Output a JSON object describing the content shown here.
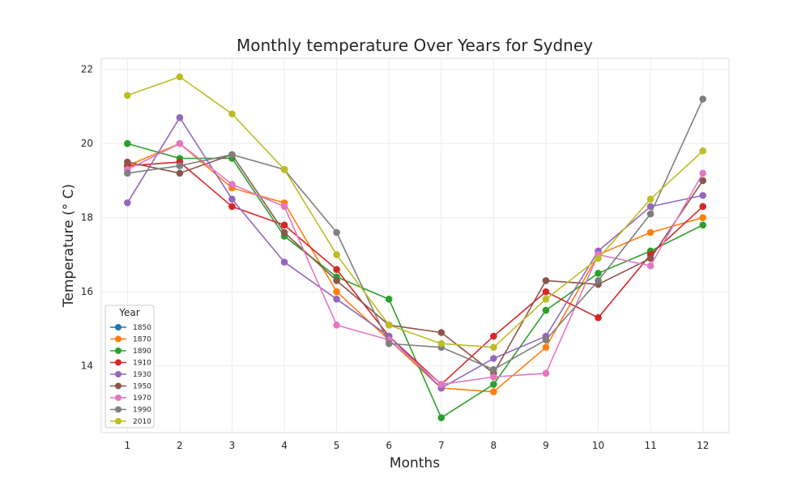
{
  "chart_data": {
    "type": "line",
    "title": "Monthly temperature Over Years for Sydney",
    "xlabel": "Months",
    "ylabel": "Temperature (° C)",
    "x": [
      1,
      2,
      3,
      4,
      5,
      6,
      7,
      8,
      9,
      10,
      11,
      12
    ],
    "xlim": [
      0.5,
      12.5
    ],
    "ylim": [
      12.2,
      22.3
    ],
    "yticks": [
      14,
      16,
      18,
      20,
      22
    ],
    "grid": true,
    "legend": {
      "title": "Year",
      "placement": "lower-left"
    },
    "series": [
      {
        "name": "1850",
        "color": "#1f77b4",
        "values": [
          null,
          null,
          null,
          null,
          null,
          null,
          null,
          null,
          null,
          null,
          null,
          null
        ]
      },
      {
        "name": "1870",
        "color": "#ff7f0e",
        "values": [
          19.4,
          20.0,
          18.8,
          18.4,
          16.0,
          14.7,
          13.4,
          13.3,
          14.5,
          17.0,
          17.6,
          18.0
        ]
      },
      {
        "name": "1890",
        "color": "#2ca02c",
        "values": [
          20.0,
          19.6,
          19.6,
          17.5,
          16.4,
          15.8,
          12.6,
          13.5,
          15.5,
          16.5,
          17.1,
          17.8
        ]
      },
      {
        "name": "1910",
        "color": "#d62728",
        "values": [
          19.4,
          19.5,
          18.3,
          17.8,
          16.6,
          14.8,
          13.5,
          14.8,
          16.0,
          15.3,
          17.0,
          18.3
        ]
      },
      {
        "name": "1930",
        "color": "#9467bd",
        "values": [
          18.4,
          20.7,
          18.5,
          16.8,
          15.8,
          14.8,
          13.4,
          14.2,
          14.8,
          17.1,
          18.3,
          18.6
        ]
      },
      {
        "name": "1950",
        "color": "#8c564b",
        "values": [
          19.5,
          19.2,
          19.7,
          17.6,
          16.3,
          15.1,
          14.9,
          13.8,
          16.3,
          16.2,
          16.9,
          19.0
        ]
      },
      {
        "name": "1970",
        "color": "#e377c2",
        "values": [
          19.3,
          20.0,
          18.9,
          18.3,
          15.1,
          14.7,
          13.5,
          13.7,
          13.8,
          17.0,
          16.7,
          19.2
        ]
      },
      {
        "name": "1990",
        "color": "#7f7f7f",
        "values": [
          19.2,
          19.4,
          19.7,
          19.3,
          17.6,
          14.6,
          14.5,
          13.9,
          14.7,
          16.3,
          18.1,
          21.2
        ]
      },
      {
        "name": "2010",
        "color": "#bcbd22",
        "values": [
          21.3,
          21.8,
          20.8,
          19.3,
          17.0,
          15.1,
          14.6,
          14.5,
          15.8,
          16.9,
          18.5,
          19.8
        ]
      }
    ]
  }
}
